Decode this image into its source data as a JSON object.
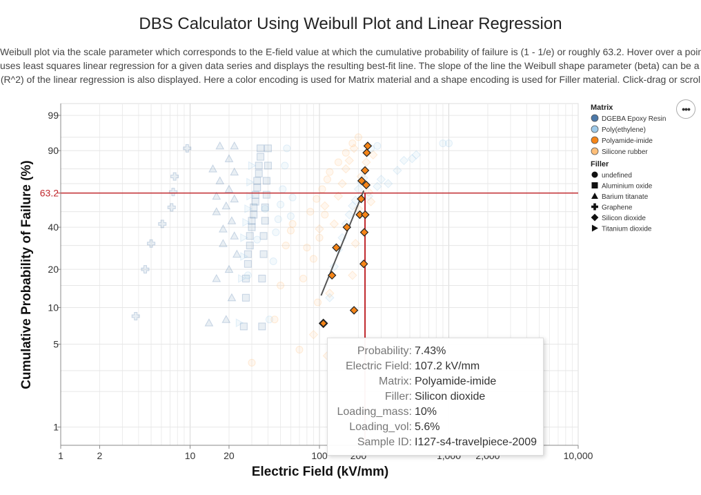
{
  "title": "DBS Calculator Using Weibull Plot and Linear Regression",
  "description": [
    "Weibull plot via the scale parameter which corresponds to the E-field value at which the cumulative probability of failure is (1 - 1/e) or roughly 63.2. Hover over a point to",
    "uses least squares linear regression for a given data series and displays the resulting best-fit line. The slope of the line the Weibull shape parameter (beta) can be a us",
    "(R^2) of the linear regression is also displayed. Here a color encoding is used for Matrix material and a shape encoding is used for Filler material. Click-drag or scrol"
  ],
  "menu_button": "•••",
  "tooltip": [
    {
      "key": "Probability:",
      "value": "7.43%"
    },
    {
      "key": "Electric Field:",
      "value": "107.2 kV/mm"
    },
    {
      "key": "Matrix:",
      "value": "Polyamide-imide"
    },
    {
      "key": "Filler:",
      "value": "Silicon dioxide"
    },
    {
      "key": "Loading_mass:",
      "value": "10%"
    },
    {
      "key": "Loading_vol:",
      "value": "5.6%"
    },
    {
      "key": "Sample ID:",
      "value": "I127-s4-travelpiece-2009"
    }
  ],
  "chart_data": {
    "type": "scatter",
    "title": "DBS Calculator Using Weibull Plot and Linear Regression",
    "xlabel": "Electric Field (kV/mm)",
    "ylabel": "Cumulative Probability of Failure (%)",
    "x_scale": "log",
    "y_scale": "weibull",
    "xlim": [
      1,
      10000
    ],
    "ylim": [
      0.7,
      99.7
    ],
    "x_ticks": [
      1,
      2,
      10,
      20,
      100,
      200,
      1000,
      2000,
      10000
    ],
    "x_tick_labels": [
      "1",
      "2",
      "10",
      "20",
      "100",
      "200",
      "1,000",
      "2,000",
      "10,000"
    ],
    "y_ticks": [
      1,
      5,
      10,
      20,
      40,
      63.2,
      90,
      99
    ],
    "y_tick_labels": [
      "1",
      "5",
      "10",
      "20",
      "40",
      "63.2",
      "90",
      "99"
    ],
    "grid": true,
    "reference_line_y": 63.2,
    "reference_line_x": 225,
    "reference_color": "#c0282d",
    "regression_line": {
      "x": [
        103,
        220
      ],
      "y": [
        12.5,
        65
      ]
    },
    "legend": {
      "position": "right",
      "matrix_title": "Matrix",
      "matrix": [
        {
          "label": "DGEBA Epoxy Resin",
          "color": "#4c78a8"
        },
        {
          "label": "Poly(ethylene)",
          "color": "#9ecae9"
        },
        {
          "label": "Polyamide-imide",
          "color": "#f58518"
        },
        {
          "label": "Silicone rubber",
          "color": "#ffbf79"
        }
      ],
      "filler_title": "Filler",
      "filler": [
        {
          "label": "undefined",
          "shape": "circle"
        },
        {
          "label": "Aluminium oxide",
          "shape": "square"
        },
        {
          "label": "Barium titanate",
          "shape": "triangle"
        },
        {
          "label": "Graphene",
          "shape": "cross"
        },
        {
          "label": "Silicon dioxide",
          "shape": "diamond"
        },
        {
          "label": "Titanium dioxide",
          "shape": "triangle-right"
        }
      ]
    },
    "highlighted_series": {
      "matrix": "Polyamide-imide",
      "filler": "Silicon dioxide",
      "points": [
        {
          "x": 107.2,
          "y": 7.43
        },
        {
          "x": 125,
          "y": 18
        },
        {
          "x": 135,
          "y": 29
        },
        {
          "x": 163,
          "y": 40
        },
        {
          "x": 185,
          "y": 9.5
        },
        {
          "x": 205,
          "y": 48
        },
        {
          "x": 210,
          "y": 59
        },
        {
          "x": 212,
          "y": 72
        },
        {
          "x": 220,
          "y": 22
        },
        {
          "x": 222,
          "y": 37
        },
        {
          "x": 225,
          "y": 79
        },
        {
          "x": 226,
          "y": 48
        },
        {
          "x": 230,
          "y": 69
        },
        {
          "x": 232,
          "y": 89
        },
        {
          "x": 236,
          "y": 92
        }
      ]
    },
    "background_series": [
      {
        "matrix": "DGEBA Epoxy Resin",
        "filler": "Graphene",
        "points": [
          [
            3.8,
            8.5
          ],
          [
            4.5,
            20
          ],
          [
            5,
            31
          ],
          [
            6.1,
            42
          ],
          [
            7.2,
            53
          ],
          [
            7.4,
            64
          ],
          [
            7.6,
            75
          ],
          [
            9.5,
            91
          ]
        ]
      },
      {
        "matrix": "DGEBA Epoxy Resin",
        "filler": "Barium titanate",
        "points": [
          [
            14,
            7.5
          ],
          [
            15,
            80
          ],
          [
            16,
            17
          ],
          [
            16,
            50
          ],
          [
            16,
            61
          ],
          [
            17,
            72
          ],
          [
            17,
            92
          ],
          [
            18,
            31
          ],
          [
            18,
            39
          ],
          [
            19,
            8
          ],
          [
            19,
            54
          ],
          [
            20,
            20
          ],
          [
            20,
            66
          ],
          [
            20,
            86
          ],
          [
            21,
            12
          ],
          [
            21,
            44
          ],
          [
            22,
            35
          ],
          [
            22,
            59
          ],
          [
            22,
            78
          ],
          [
            22,
            92
          ],
          [
            23,
            26
          ]
        ]
      },
      {
        "matrix": "DGEBA Epoxy Resin",
        "filler": "Aluminium oxide",
        "points": [
          [
            26,
            7
          ],
          [
            27,
            12
          ],
          [
            27,
            17
          ],
          [
            28,
            22
          ],
          [
            28,
            26
          ],
          [
            29,
            30
          ],
          [
            29,
            35
          ],
          [
            30,
            40
          ],
          [
            30,
            44
          ],
          [
            31,
            48
          ],
          [
            31,
            53
          ],
          [
            32,
            57
          ],
          [
            32,
            62
          ],
          [
            33,
            67
          ],
          [
            33,
            72
          ],
          [
            34,
            77
          ],
          [
            34,
            82
          ],
          [
            35,
            87
          ],
          [
            35,
            91
          ],
          [
            36,
            7
          ],
          [
            36,
            17
          ],
          [
            37,
            26
          ],
          [
            37,
            35
          ],
          [
            38,
            44
          ],
          [
            38,
            53
          ],
          [
            39,
            62
          ],
          [
            39,
            72
          ],
          [
            40,
            82
          ],
          [
            40,
            91
          ]
        ]
      },
      {
        "matrix": "Poly(ethylene)",
        "filler": "Titanium dioxide",
        "points": [
          [
            24,
            7.5
          ],
          [
            25,
            17
          ],
          [
            26,
            25
          ],
          [
            26,
            34
          ],
          [
            27,
            43
          ],
          [
            28,
            52
          ],
          [
            29,
            61
          ],
          [
            29,
            71
          ],
          [
            30,
            82
          ]
        ]
      },
      {
        "matrix": "Poly(ethylene)",
        "filler": "undefined",
        "points": [
          [
            28,
            18
          ],
          [
            33,
            33
          ],
          [
            38,
            52
          ],
          [
            41,
            8
          ],
          [
            44,
            23
          ],
          [
            46,
            37
          ],
          [
            48,
            45
          ],
          [
            50,
            55
          ],
          [
            52,
            66
          ],
          [
            54,
            82
          ],
          [
            56,
            91
          ],
          [
            60,
            47
          ],
          [
            62,
            60
          ]
        ]
      },
      {
        "matrix": "Silicone rubber",
        "filler": "undefined",
        "points": [
          [
            30,
            3.5
          ],
          [
            45,
            8
          ],
          [
            50,
            15
          ],
          [
            55,
            30
          ],
          [
            60,
            38
          ],
          [
            62,
            42
          ],
          [
            70,
            4.5
          ],
          [
            75,
            17
          ],
          [
            80,
            29
          ],
          [
            85,
            50
          ],
          [
            90,
            24
          ],
          [
            95,
            59
          ],
          [
            97,
            11
          ],
          [
            100,
            34
          ],
          [
            105,
            66
          ],
          [
            110,
            48
          ],
          [
            115,
            73
          ],
          [
            120,
            78
          ],
          [
            140,
            84
          ],
          [
            160,
            89
          ],
          [
            180,
            93
          ],
          [
            200,
            95
          ]
        ]
      },
      {
        "matrix": "Silicone rubber",
        "filler": "Silicon dioxide",
        "points": [
          [
            90,
            6
          ],
          [
            100,
            39
          ],
          [
            110,
            54
          ],
          [
            115,
            4
          ],
          [
            120,
            13
          ],
          [
            130,
            42
          ],
          [
            140,
            61
          ],
          [
            150,
            70
          ],
          [
            160,
            80
          ],
          [
            170,
            85
          ],
          [
            180,
            18
          ],
          [
            185,
            91
          ],
          [
            190,
            31
          ],
          [
            200,
            52
          ],
          [
            210,
            75
          ],
          [
            230,
            84
          ],
          [
            240,
            64
          ],
          [
            250,
            57
          ],
          [
            260,
            88
          ]
        ]
      },
      {
        "matrix": "Poly(ethylene)",
        "filler": "Silicon dioxide",
        "points": [
          [
            120,
            12
          ],
          [
            130,
            21
          ],
          [
            140,
            28
          ],
          [
            150,
            34
          ],
          [
            160,
            42
          ],
          [
            170,
            48
          ],
          [
            180,
            54
          ],
          [
            190,
            58
          ],
          [
            200,
            66
          ],
          [
            210,
            71
          ],
          [
            220,
            74
          ],
          [
            240,
            61
          ],
          [
            280,
            68
          ],
          [
            300,
            73
          ],
          [
            340,
            70
          ],
          [
            400,
            79
          ],
          [
            450,
            85
          ],
          [
            520,
            86
          ],
          [
            560,
            88
          ]
        ]
      },
      {
        "matrix": "Poly(ethylene)",
        "filler": "undefined",
        "points": [
          [
            250,
            91
          ],
          [
            280,
            92
          ],
          [
            900,
            93
          ],
          [
            1000,
            93
          ]
        ]
      }
    ]
  }
}
